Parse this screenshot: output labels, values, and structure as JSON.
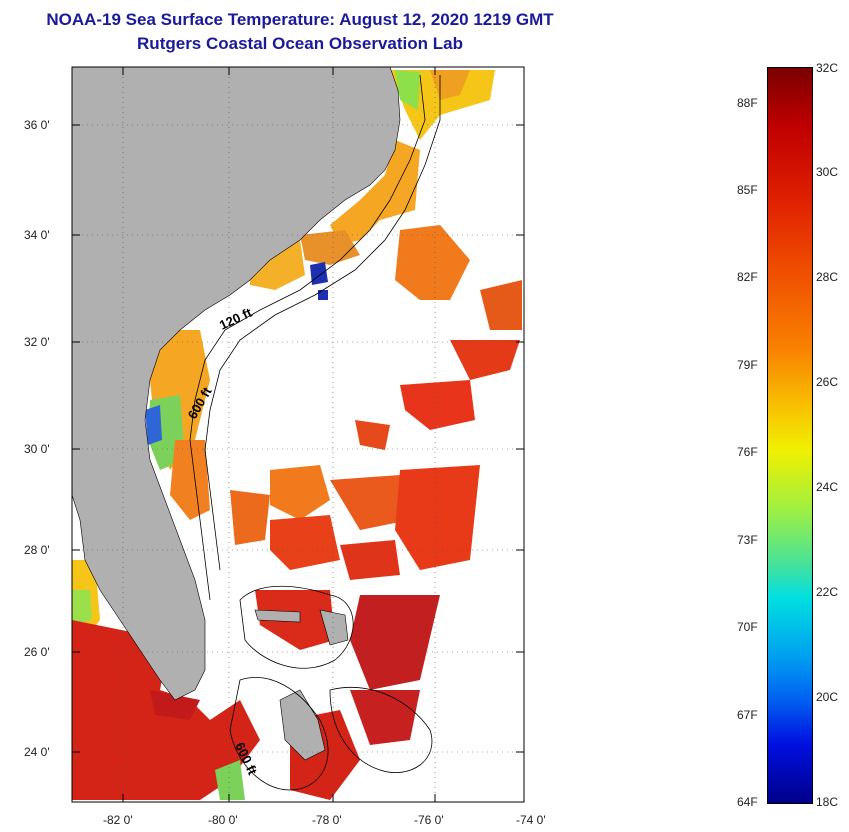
{
  "header": {
    "title": "NOAA-19 Sea Surface Temperature:  August 12, 2020 1219 GMT",
    "subtitle": "Rutgers Coastal Ocean Observation Lab"
  },
  "map": {
    "lat_labels": [
      "36 0'",
      "34 0'",
      "32 0'",
      "30 0'",
      "28 0'",
      "26 0'",
      "24 0'"
    ],
    "lon_labels": [
      "-82 0'",
      "-80 0'",
      "-78 0'",
      "-76 0'",
      "-74 0'"
    ],
    "contour_labels": [
      "120 ft",
      "600 ft",
      "600 ft"
    ],
    "colors": {
      "land": "#b0b0b0",
      "ocean_cloud": "#ffffff"
    }
  },
  "colorbar": {
    "celsius_labels": [
      "32C",
      "30C",
      "28C",
      "26C",
      "24C",
      "22C",
      "20C",
      "18C"
    ],
    "fahrenheit_labels": [
      "88F",
      "85F",
      "82F",
      "79F",
      "76F",
      "73F",
      "70F",
      "67F",
      "64F"
    ],
    "range_c": [
      18,
      32
    ]
  }
}
